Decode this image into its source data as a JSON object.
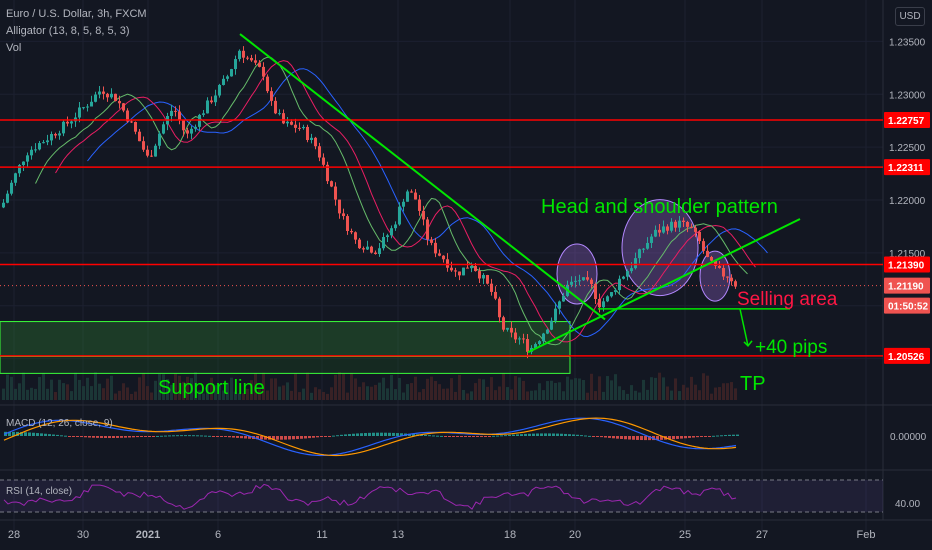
{
  "header": {
    "symbol": "Euro / U.S. Dollar, 3h, FXCM",
    "alligator": "Alligator (13, 8, 5, 8, 5, 3)",
    "vol": "Vol",
    "currency": "USD"
  },
  "colors": {
    "background": "#131722",
    "bull": "#26a69a",
    "bear": "#ef5350",
    "level_line": "#ff0000",
    "annotation_green": "#00e600",
    "pattern_fill": "#9c6bd3"
  },
  "chart_data": {
    "type": "candlestick",
    "price_axis": {
      "ticks": [
        "1.23500",
        "1.23000",
        "1.22500",
        "1.22000",
        "1.21500",
        "1.20500"
      ],
      "labels": [
        {
          "text": "1.22757",
          "kind": "level"
        },
        {
          "text": "1.22311",
          "kind": "level"
        },
        {
          "text": "1.21390",
          "kind": "level"
        },
        {
          "text": "1.21190",
          "kind": "price"
        },
        {
          "text": "01:50:52",
          "kind": "timer"
        },
        {
          "text": "1.20526",
          "kind": "level"
        }
      ],
      "range": [
        1.2025,
        1.2375
      ]
    },
    "time_axis": {
      "ticks": [
        "28",
        "30",
        "2021",
        "6",
        "11",
        "13",
        "18",
        "20",
        "25",
        "27",
        "Feb"
      ]
    },
    "horizontal_levels": [
      1.22757,
      1.22311,
      1.2139,
      1.20526
    ],
    "current_price": 1.2119,
    "annotations": {
      "pattern": "Head and shoulder pattern",
      "selling": "Selling area",
      "pips": "+40 pips",
      "tp": "TP",
      "support": "Support line"
    },
    "macd": {
      "label": "MACD (12, 26, close, 9)",
      "tick": "0.00000"
    },
    "rsi": {
      "label": "RSI (14, close)",
      "tick": "40.00"
    }
  }
}
